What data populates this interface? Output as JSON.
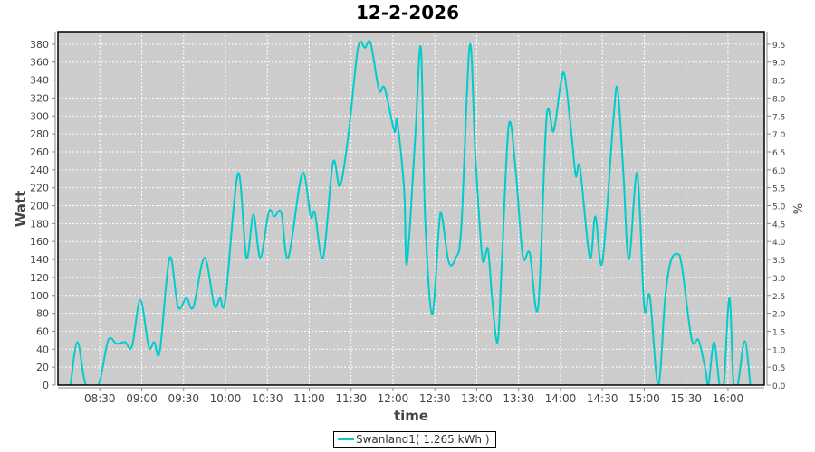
{
  "chart_data": {
    "type": "line",
    "title": "12-2-2026",
    "xlabel": "time",
    "ylabel": "Watt",
    "y2label": "%",
    "xlim": [
      "08:00",
      "16:26"
    ],
    "ylim": [
      0,
      394
    ],
    "y2lim": [
      0,
      9.85
    ],
    "grid": true,
    "legend_position": "bottom",
    "x_ticks": [
      "08:30",
      "09:00",
      "09:30",
      "10:00",
      "10:30",
      "11:00",
      "11:30",
      "12:00",
      "12:30",
      "13:00",
      "13:30",
      "14:00",
      "14:30",
      "15:00",
      "15:30",
      "16:00"
    ],
    "y_ticks": [
      0,
      20,
      40,
      60,
      80,
      100,
      120,
      140,
      160,
      180,
      200,
      220,
      240,
      260,
      280,
      300,
      320,
      340,
      360,
      380
    ],
    "y2_ticks": [
      "0.0",
      "0.5",
      "1.0",
      "1.5",
      "2.0",
      "2.5",
      "3.0",
      "3.5",
      "4.0",
      "4.5",
      "5.0",
      "5.5",
      "6.0",
      "6.5",
      "7.0",
      "7.5",
      "8.0",
      "8.5",
      "9.0",
      "9.5"
    ],
    "series": [
      {
        "name": "Swanland1( 1.265 kWh )",
        "color": "#00CCCC",
        "x": [
          "08:09",
          "08:14",
          "08:20",
          "08:29",
          "08:36",
          "08:42",
          "08:48",
          "08:53",
          "08:59",
          "09:05",
          "09:09",
          "09:13",
          "09:20",
          "09:26",
          "09:32",
          "09:37",
          "09:45",
          "09:52",
          "09:56",
          "10:00",
          "10:09",
          "10:15",
          "10:20",
          "10:25",
          "10:31",
          "10:35",
          "10:40",
          "10:45",
          "10:55",
          "11:01",
          "11:04",
          "11:10",
          "11:17",
          "11:22",
          "11:28",
          "11:35",
          "11:40",
          "11:44",
          "11:50",
          "11:54",
          "12:01",
          "12:03",
          "12:08",
          "12:10",
          "12:16",
          "12:20",
          "12:23",
          "12:28",
          "12:33",
          "12:35",
          "12:40",
          "12:45",
          "12:49",
          "12:55",
          "12:59",
          "13:04",
          "13:08",
          "13:11",
          "13:15",
          "13:18",
          "13:23",
          "13:28",
          "13:33",
          "13:38",
          "13:44",
          "13:50",
          "13:55",
          "14:00",
          "14:03",
          "14:08",
          "14:11",
          "14:14",
          "14:21",
          "14:25",
          "14:30",
          "14:38",
          "14:41",
          "14:45",
          "14:49",
          "14:55",
          "15:00",
          "15:04",
          "15:10",
          "15:15",
          "15:19",
          "15:24",
          "15:27",
          "15:34",
          "15:39",
          "15:44",
          "15:46",
          "15:50",
          "15:54",
          "15:57",
          "16:01",
          "16:04",
          "16:07",
          "16:12",
          "16:16"
        ],
        "y": [
          0,
          48,
          0,
          0,
          50,
          46,
          48,
          43,
          95,
          43,
          48,
          38,
          142,
          87,
          97,
          87,
          142,
          89,
          97,
          96,
          236,
          142,
          190,
          142,
          193,
          188,
          192,
          142,
          236,
          188,
          192,
          142,
          248,
          222,
          278,
          376,
          376,
          381,
          329,
          331,
          283,
          294,
          218,
          135,
          278,
          376,
          188,
          79,
          177,
          189,
          137,
          142,
          177,
          379,
          258,
          142,
          152,
          97,
          48,
          137,
          290,
          238,
          144,
          147,
          87,
          298,
          283,
          334,
          345,
          278,
          233,
          242,
          142,
          188,
          137,
          298,
          329,
          238,
          140,
          236,
          87,
          99,
          0,
          97,
          138,
          146,
          132,
          51,
          50,
          16,
          0,
          48,
          0,
          0,
          97,
          0,
          0,
          49,
          0
        ]
      }
    ]
  }
}
